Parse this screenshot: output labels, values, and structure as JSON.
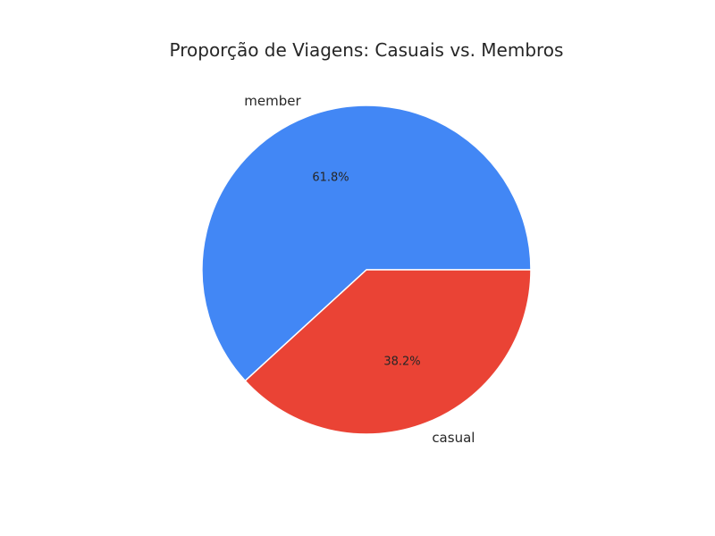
{
  "chart_data": {
    "type": "pie",
    "title": "Proporção de Viagens: Casuais vs. Membros",
    "slices": [
      {
        "label": "member",
        "value": 61.8,
        "pct_label": "61.8%",
        "color": "#4287f5"
      },
      {
        "label": "casual",
        "value": 38.2,
        "pct_label": "38.2%",
        "color": "#ea4335"
      }
    ],
    "start_angle_deg": 0,
    "direction": "counterclockwise",
    "legend": "none"
  }
}
